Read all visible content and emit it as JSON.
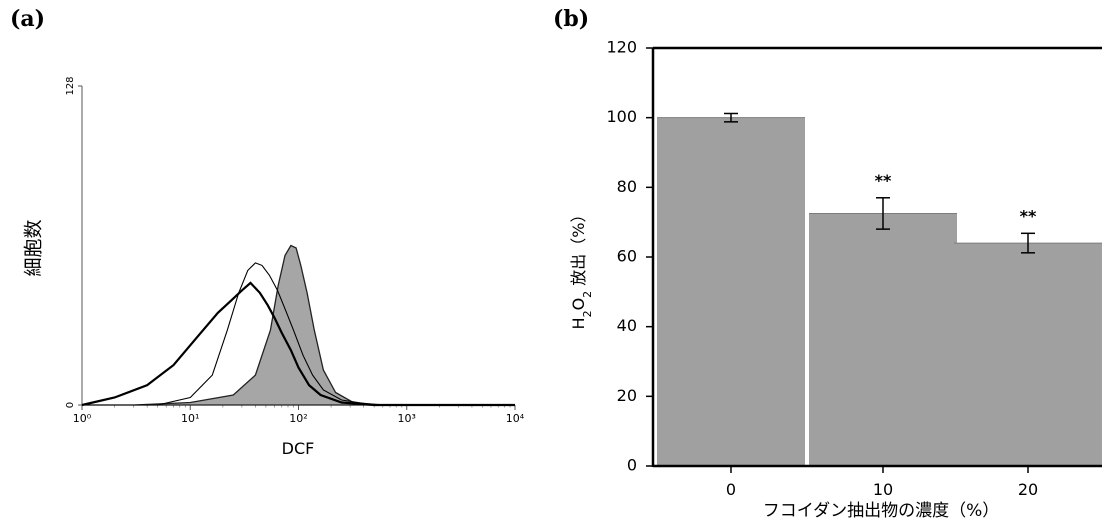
{
  "panels": {
    "a": {
      "label": "(a)"
    },
    "b": {
      "label": "(b)"
    }
  },
  "colors": {
    "fill_gray": "#a6a6a6",
    "line_black": "#000000",
    "bar_gray": "#a0a0a0"
  },
  "chart_data": [
    {
      "panel": "(a)",
      "type": "area",
      "xscale": "log",
      "xlim": [
        1,
        10000
      ],
      "ylim": [
        0,
        128
      ],
      "xlabel": "DCF",
      "ylabel": "細胞数",
      "x_ticks": [
        "10⁰",
        "10¹",
        "10²",
        "10³",
        "10⁴"
      ],
      "y_ticks": [
        "0",
        "128"
      ],
      "grid": false,
      "legend": "none",
      "series": [
        {
          "style": "filled-gray",
          "points": [
            [
              1,
              0
            ],
            [
              3,
              0
            ],
            [
              10,
              1
            ],
            [
              25,
              4
            ],
            [
              40,
              12
            ],
            [
              55,
              30
            ],
            [
              65,
              48
            ],
            [
              75,
              60
            ],
            [
              85,
              64
            ],
            [
              95,
              63
            ],
            [
              105,
              56
            ],
            [
              120,
              45
            ],
            [
              140,
              30
            ],
            [
              170,
              14
            ],
            [
              220,
              5
            ],
            [
              320,
              1
            ],
            [
              600,
              0
            ],
            [
              10000,
              0
            ]
          ]
        },
        {
          "style": "black-line",
          "points": [
            [
              1,
              0
            ],
            [
              2,
              3
            ],
            [
              4,
              8
            ],
            [
              7,
              16
            ],
            [
              12,
              28
            ],
            [
              18,
              37
            ],
            [
              24,
              42
            ],
            [
              30,
              46
            ],
            [
              36,
              49
            ],
            [
              44,
              45
            ],
            [
              52,
              40
            ],
            [
              60,
              35
            ],
            [
              70,
              29
            ],
            [
              85,
              22
            ],
            [
              100,
              15
            ],
            [
              125,
              8
            ],
            [
              160,
              4
            ],
            [
              250,
              1
            ],
            [
              500,
              0
            ],
            [
              10000,
              0
            ]
          ]
        },
        {
          "style": "thin-line",
          "points": [
            [
              1,
              0
            ],
            [
              5,
              0
            ],
            [
              10,
              3
            ],
            [
              16,
              12
            ],
            [
              22,
              30
            ],
            [
              28,
              45
            ],
            [
              34,
              54
            ],
            [
              40,
              57
            ],
            [
              46,
              56
            ],
            [
              54,
              52
            ],
            [
              64,
              46
            ],
            [
              76,
              38
            ],
            [
              90,
              30
            ],
            [
              110,
              20
            ],
            [
              135,
              12
            ],
            [
              170,
              6
            ],
            [
              250,
              2
            ],
            [
              500,
              0
            ],
            [
              10000,
              0
            ]
          ]
        }
      ]
    },
    {
      "panel": "(b)",
      "type": "bar",
      "categories": [
        "0",
        "10",
        "20"
      ],
      "values": [
        100,
        72.5,
        64
      ],
      "errors": [
        1.2,
        4.5,
        2.8
      ],
      "annotations": [
        "",
        "**",
        "**"
      ],
      "ylabel_parts": [
        "H",
        "2",
        "O",
        "2",
        " 放出（%）"
      ],
      "xlabel": "フコイダン抽出物の濃度（%）",
      "ylim": [
        0,
        120
      ],
      "y_ticks": [
        "0",
        "20",
        "40",
        "60",
        "80",
        "100",
        "120"
      ],
      "grid": false,
      "legend": "none"
    }
  ]
}
